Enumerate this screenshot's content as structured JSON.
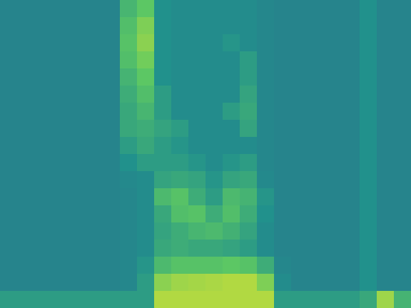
{
  "chart_data": {
    "type": "heatmap",
    "xlim": [
      0,
      24
    ],
    "ylim": [
      0,
      18
    ],
    "zlim": [
      0,
      1
    ],
    "tick_labels": false,
    "cells": [
      [
        0.45,
        0.45,
        0.45,
        0.45,
        0.45,
        0.45,
        0.45,
        0.66,
        0.74,
        0.5,
        0.48,
        0.48,
        0.48,
        0.48,
        0.48,
        0.46,
        0.45,
        0.45,
        0.45,
        0.45,
        0.45,
        0.5,
        0.45,
        0.45
      ],
      [
        0.45,
        0.45,
        0.45,
        0.45,
        0.45,
        0.45,
        0.45,
        0.7,
        0.8,
        0.5,
        0.48,
        0.48,
        0.48,
        0.48,
        0.48,
        0.46,
        0.45,
        0.45,
        0.45,
        0.45,
        0.45,
        0.5,
        0.45,
        0.45
      ],
      [
        0.45,
        0.45,
        0.45,
        0.45,
        0.45,
        0.45,
        0.45,
        0.72,
        0.82,
        0.5,
        0.48,
        0.48,
        0.48,
        0.52,
        0.48,
        0.46,
        0.45,
        0.45,
        0.45,
        0.45,
        0.45,
        0.5,
        0.45,
        0.45
      ],
      [
        0.45,
        0.45,
        0.45,
        0.45,
        0.45,
        0.45,
        0.45,
        0.7,
        0.78,
        0.5,
        0.48,
        0.48,
        0.48,
        0.48,
        0.55,
        0.46,
        0.45,
        0.45,
        0.45,
        0.45,
        0.45,
        0.5,
        0.45,
        0.45
      ],
      [
        0.45,
        0.45,
        0.45,
        0.45,
        0.45,
        0.45,
        0.45,
        0.65,
        0.74,
        0.5,
        0.48,
        0.48,
        0.48,
        0.48,
        0.55,
        0.46,
        0.45,
        0.45,
        0.45,
        0.45,
        0.45,
        0.5,
        0.45,
        0.45
      ],
      [
        0.45,
        0.45,
        0.45,
        0.45,
        0.45,
        0.45,
        0.45,
        0.62,
        0.7,
        0.55,
        0.48,
        0.48,
        0.48,
        0.48,
        0.58,
        0.46,
        0.45,
        0.45,
        0.45,
        0.45,
        0.45,
        0.5,
        0.45,
        0.45
      ],
      [
        0.45,
        0.45,
        0.45,
        0.45,
        0.45,
        0.45,
        0.45,
        0.6,
        0.66,
        0.55,
        0.48,
        0.48,
        0.48,
        0.55,
        0.6,
        0.46,
        0.45,
        0.45,
        0.45,
        0.45,
        0.45,
        0.5,
        0.45,
        0.45
      ],
      [
        0.45,
        0.45,
        0.45,
        0.45,
        0.45,
        0.45,
        0.45,
        0.6,
        0.62,
        0.58,
        0.55,
        0.48,
        0.48,
        0.48,
        0.58,
        0.46,
        0.45,
        0.45,
        0.45,
        0.45,
        0.45,
        0.5,
        0.45,
        0.45
      ],
      [
        0.45,
        0.45,
        0.45,
        0.45,
        0.45,
        0.45,
        0.45,
        0.55,
        0.6,
        0.55,
        0.52,
        0.48,
        0.48,
        0.48,
        0.48,
        0.46,
        0.45,
        0.45,
        0.45,
        0.45,
        0.45,
        0.5,
        0.45,
        0.45
      ],
      [
        0.45,
        0.45,
        0.45,
        0.45,
        0.45,
        0.45,
        0.45,
        0.5,
        0.55,
        0.55,
        0.55,
        0.52,
        0.48,
        0.52,
        0.55,
        0.46,
        0.45,
        0.45,
        0.45,
        0.45,
        0.45,
        0.5,
        0.45,
        0.45
      ],
      [
        0.45,
        0.45,
        0.45,
        0.45,
        0.45,
        0.45,
        0.45,
        0.47,
        0.48,
        0.58,
        0.6,
        0.58,
        0.52,
        0.58,
        0.6,
        0.47,
        0.45,
        0.45,
        0.45,
        0.45,
        0.45,
        0.5,
        0.45,
        0.45
      ],
      [
        0.45,
        0.45,
        0.45,
        0.45,
        0.45,
        0.45,
        0.45,
        0.46,
        0.48,
        0.68,
        0.72,
        0.62,
        0.55,
        0.68,
        0.65,
        0.52,
        0.45,
        0.45,
        0.45,
        0.45,
        0.45,
        0.5,
        0.45,
        0.45
      ],
      [
        0.45,
        0.45,
        0.45,
        0.45,
        0.45,
        0.45,
        0.45,
        0.46,
        0.48,
        0.6,
        0.7,
        0.72,
        0.62,
        0.7,
        0.62,
        0.5,
        0.45,
        0.45,
        0.45,
        0.45,
        0.45,
        0.5,
        0.45,
        0.45
      ],
      [
        0.45,
        0.45,
        0.45,
        0.45,
        0.45,
        0.45,
        0.45,
        0.46,
        0.48,
        0.58,
        0.62,
        0.66,
        0.68,
        0.64,
        0.58,
        0.48,
        0.45,
        0.45,
        0.45,
        0.45,
        0.45,
        0.5,
        0.45,
        0.45
      ],
      [
        0.45,
        0.45,
        0.45,
        0.45,
        0.45,
        0.45,
        0.45,
        0.46,
        0.48,
        0.6,
        0.62,
        0.6,
        0.6,
        0.58,
        0.55,
        0.48,
        0.45,
        0.45,
        0.45,
        0.45,
        0.45,
        0.5,
        0.45,
        0.45
      ],
      [
        0.45,
        0.45,
        0.45,
        0.45,
        0.45,
        0.45,
        0.45,
        0.46,
        0.52,
        0.68,
        0.72,
        0.72,
        0.72,
        0.74,
        0.72,
        0.62,
        0.46,
        0.45,
        0.45,
        0.45,
        0.45,
        0.5,
        0.45,
        0.45
      ],
      [
        0.45,
        0.45,
        0.45,
        0.45,
        0.45,
        0.45,
        0.45,
        0.46,
        0.55,
        0.82,
        0.85,
        0.86,
        0.87,
        0.88,
        0.88,
        0.8,
        0.48,
        0.45,
        0.45,
        0.45,
        0.45,
        0.5,
        0.45,
        0.45
      ],
      [
        0.55,
        0.55,
        0.55,
        0.55,
        0.55,
        0.55,
        0.55,
        0.55,
        0.55,
        0.88,
        0.88,
        0.88,
        0.88,
        0.88,
        0.88,
        0.88,
        0.55,
        0.55,
        0.55,
        0.55,
        0.55,
        0.6,
        0.85,
        0.65
      ]
    ]
  }
}
